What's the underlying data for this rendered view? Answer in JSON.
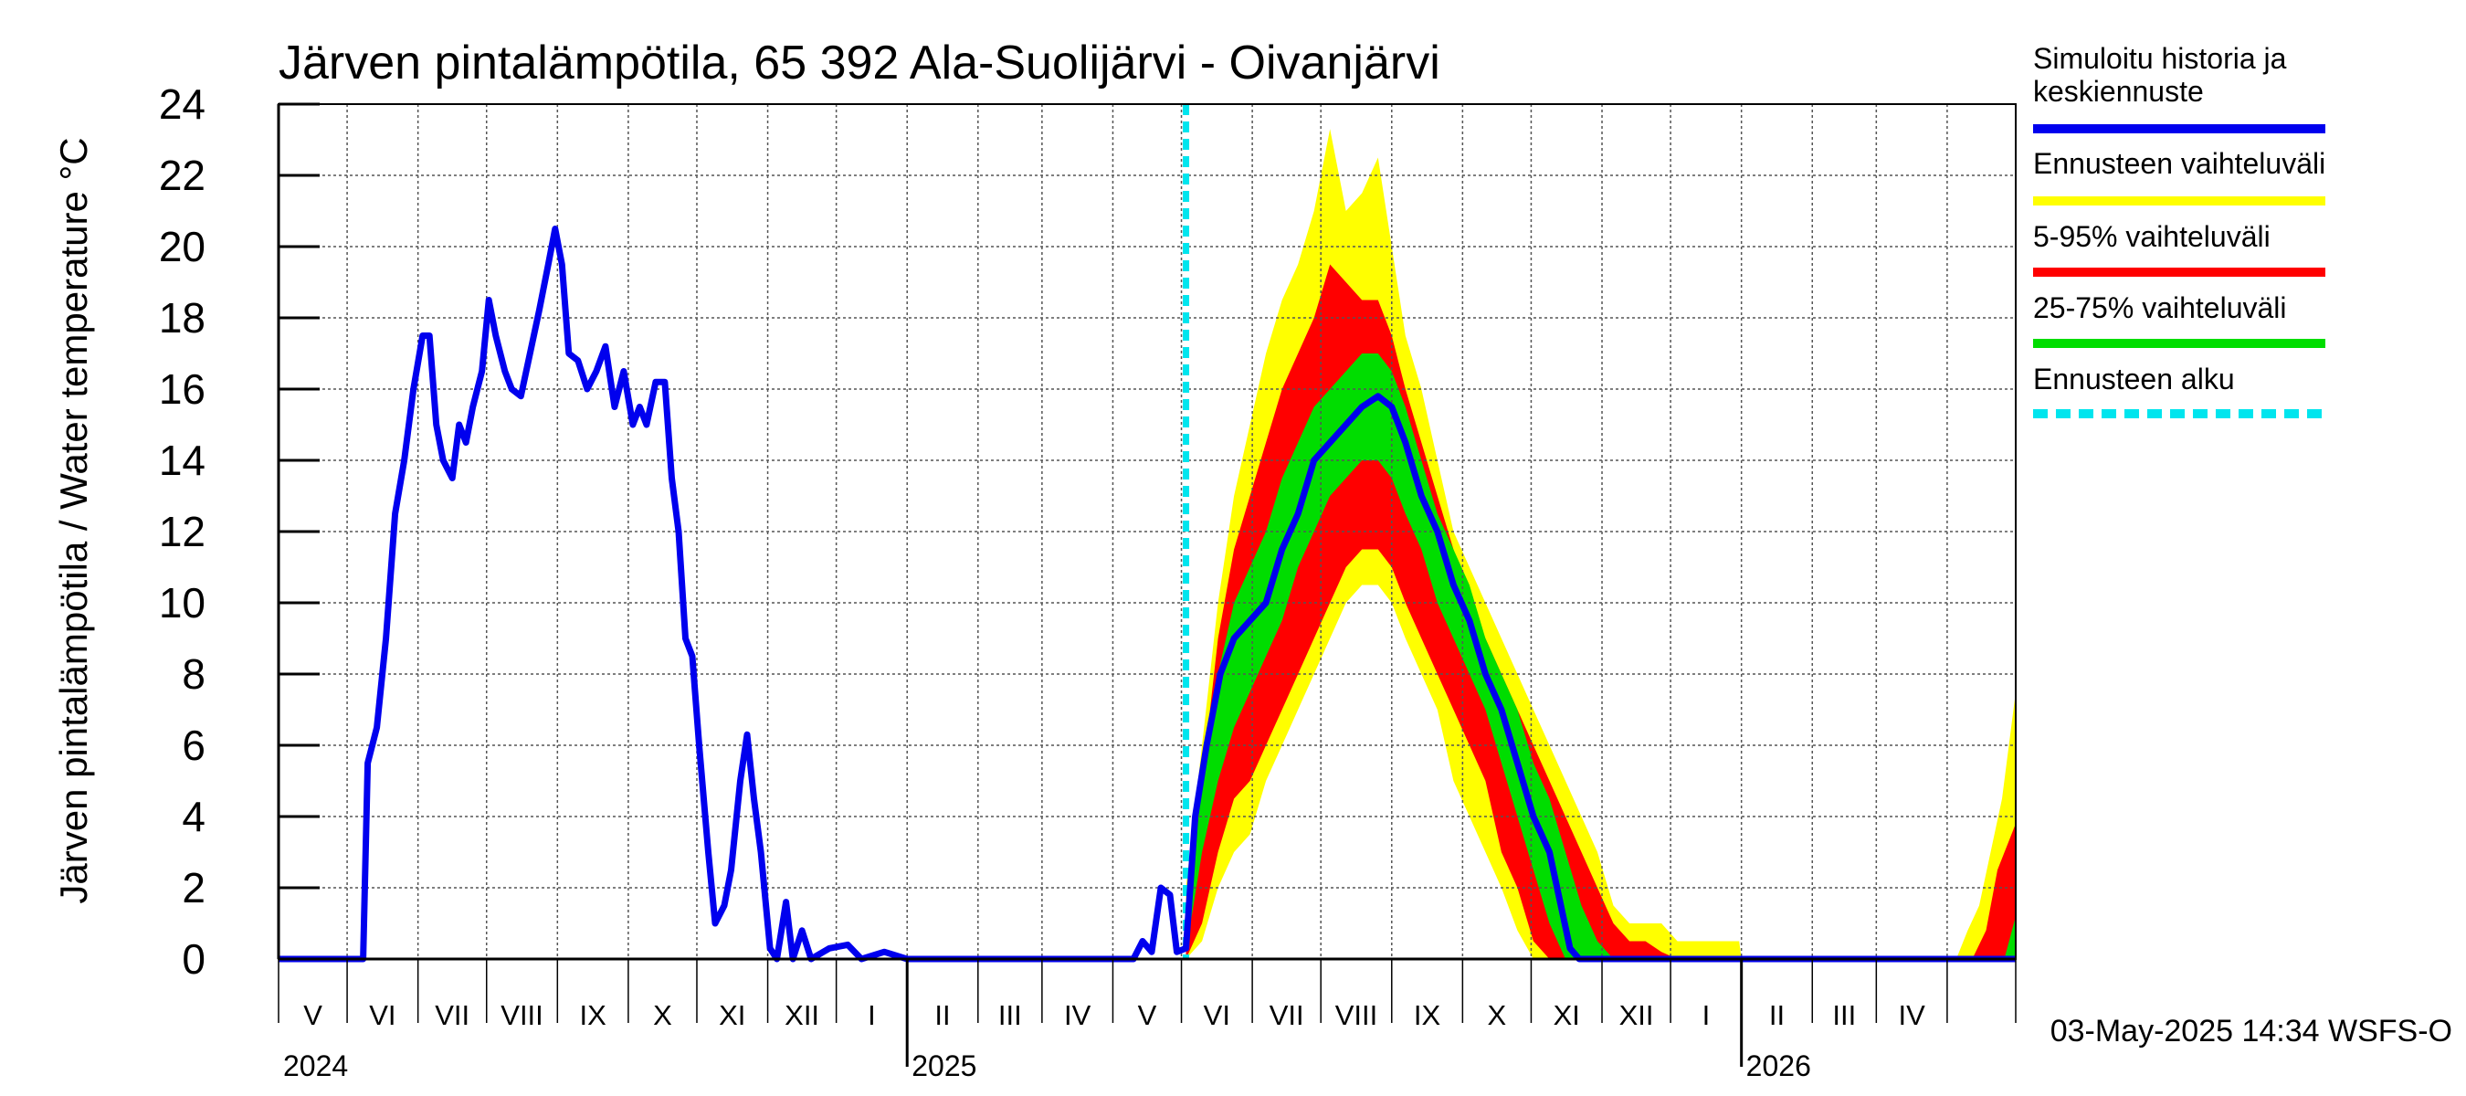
{
  "chart_data": {
    "type": "area",
    "title": "Järven pintalämpötila, 65 392 Ala-Suolijärvi - Oivanjärvi",
    "ylabel": "Järven pintalämpötila / Water temperature °C",
    "xlabel": "",
    "ylim": [
      0,
      24
    ],
    "yticks": [
      0,
      2,
      4,
      6,
      8,
      10,
      12,
      14,
      16,
      18,
      20,
      22,
      24
    ],
    "xlim": [
      "2024-04-01",
      "2026-05-01"
    ],
    "grid": true,
    "legend_position": "right",
    "month_labels": [
      "V",
      "VI",
      "VII",
      "VIII",
      "IX",
      "X",
      "XI",
      "XII",
      "I",
      "II",
      "III",
      "IV",
      "V",
      "VI",
      "VII",
      "VIII",
      "IX",
      "X",
      "XI",
      "XII",
      "I",
      "II",
      "III",
      "IV"
    ],
    "year_labels": [
      {
        "date": "2024-04-01",
        "label": "2024"
      },
      {
        "date": "2025-01-01",
        "label": "2025"
      },
      {
        "date": "2026-01-01",
        "label": "2026"
      }
    ],
    "forecast_start": "2025-05-03",
    "footer": "03-May-2025 14:34 WSFS-O",
    "legend": [
      {
        "label": "Simuloitu historia ja keskiennuste",
        "color": "#0000ee",
        "style": "solid"
      },
      {
        "label": "Ennusteen vaihteluväli",
        "color": "#ffff00",
        "style": "solid"
      },
      {
        "label": "5-95% vaihteluväli",
        "color": "#ff0000",
        "style": "solid"
      },
      {
        "label": "25-75% vaihteluväli",
        "color": "#00dd00",
        "style": "solid"
      },
      {
        "label": "Ennusteen alku",
        "color": "#00e5ee",
        "style": "dashed"
      }
    ],
    "series": [
      {
        "name": "Simuloitu historia ja keskiennuste",
        "color": "#0000ee",
        "points": [
          [
            "2024-04-01",
            0
          ],
          [
            "2024-05-08",
            0
          ],
          [
            "2024-05-10",
            5.5
          ],
          [
            "2024-05-14",
            6.5
          ],
          [
            "2024-05-18",
            9
          ],
          [
            "2024-05-22",
            12.5
          ],
          [
            "2024-05-26",
            14
          ],
          [
            "2024-05-30",
            16
          ],
          [
            "2024-06-03",
            17.5
          ],
          [
            "2024-06-06",
            17.5
          ],
          [
            "2024-06-09",
            15
          ],
          [
            "2024-06-12",
            14
          ],
          [
            "2024-06-16",
            13.5
          ],
          [
            "2024-06-19",
            15
          ],
          [
            "2024-06-22",
            14.5
          ],
          [
            "2024-06-25",
            15.5
          ],
          [
            "2024-06-29",
            16.5
          ],
          [
            "2024-07-02",
            18.5
          ],
          [
            "2024-07-05",
            17.5
          ],
          [
            "2024-07-09",
            16.5
          ],
          [
            "2024-07-12",
            16
          ],
          [
            "2024-07-16",
            15.8
          ],
          [
            "2024-07-20",
            17
          ],
          [
            "2024-07-24",
            18.2
          ],
          [
            "2024-07-28",
            19.5
          ],
          [
            "2024-07-31",
            20.5
          ],
          [
            "2024-08-03",
            19.5
          ],
          [
            "2024-08-06",
            17
          ],
          [
            "2024-08-10",
            16.8
          ],
          [
            "2024-08-14",
            16
          ],
          [
            "2024-08-18",
            16.5
          ],
          [
            "2024-08-22",
            17.2
          ],
          [
            "2024-08-26",
            15.5
          ],
          [
            "2024-08-30",
            16.5
          ],
          [
            "2024-09-03",
            15
          ],
          [
            "2024-09-06",
            15.5
          ],
          [
            "2024-09-09",
            15
          ],
          [
            "2024-09-13",
            16.2
          ],
          [
            "2024-09-17",
            16.2
          ],
          [
            "2024-09-20",
            13.5
          ],
          [
            "2024-09-23",
            12
          ],
          [
            "2024-09-26",
            9
          ],
          [
            "2024-09-29",
            8.5
          ],
          [
            "2024-10-02",
            6
          ],
          [
            "2024-10-06",
            3
          ],
          [
            "2024-10-09",
            1
          ],
          [
            "2024-10-13",
            1.5
          ],
          [
            "2024-10-16",
            2.5
          ],
          [
            "2024-10-20",
            5
          ],
          [
            "2024-10-23",
            6.3
          ],
          [
            "2024-10-26",
            4.5
          ],
          [
            "2024-10-29",
            3
          ],
          [
            "2024-11-02",
            0.3
          ],
          [
            "2024-11-05",
            0
          ],
          [
            "2024-11-09",
            1.6
          ],
          [
            "2024-11-12",
            0
          ],
          [
            "2024-11-16",
            0.8
          ],
          [
            "2024-11-20",
            0
          ],
          [
            "2024-11-28",
            0.3
          ],
          [
            "2024-12-06",
            0.4
          ],
          [
            "2024-12-12",
            0
          ],
          [
            "2024-12-22",
            0.2
          ],
          [
            "2025-01-01",
            0
          ],
          [
            "2025-04-10",
            0
          ],
          [
            "2025-04-14",
            0.5
          ],
          [
            "2025-04-18",
            0.2
          ],
          [
            "2025-04-22",
            2
          ],
          [
            "2025-04-26",
            1.8
          ],
          [
            "2025-04-29",
            0.2
          ],
          [
            "2025-05-03",
            0.3
          ],
          [
            "2025-05-07",
            4
          ],
          [
            "2025-05-12",
            6
          ],
          [
            "2025-05-18",
            8
          ],
          [
            "2025-05-24",
            9
          ],
          [
            "2025-05-31",
            9.5
          ],
          [
            "2025-06-07",
            10
          ],
          [
            "2025-06-14",
            11.5
          ],
          [
            "2025-06-21",
            12.5
          ],
          [
            "2025-06-28",
            14
          ],
          [
            "2025-07-05",
            14.5
          ],
          [
            "2025-07-12",
            15
          ],
          [
            "2025-07-19",
            15.5
          ],
          [
            "2025-07-26",
            15.8
          ],
          [
            "2025-08-01",
            15.5
          ],
          [
            "2025-08-07",
            14.5
          ],
          [
            "2025-08-14",
            13
          ],
          [
            "2025-08-21",
            12
          ],
          [
            "2025-08-28",
            10.5
          ],
          [
            "2025-09-04",
            9.5
          ],
          [
            "2025-09-11",
            8
          ],
          [
            "2025-09-18",
            7
          ],
          [
            "2025-09-25",
            5.5
          ],
          [
            "2025-10-02",
            4
          ],
          [
            "2025-10-09",
            3
          ],
          [
            "2025-10-14",
            1.5
          ],
          [
            "2025-10-18",
            0.3
          ],
          [
            "2025-10-22",
            0
          ],
          [
            "2026-05-01",
            0
          ]
        ]
      },
      {
        "name": "Ennusteen vaihteluväli",
        "color": "#ffff00",
        "points": [
          [
            "2025-05-03",
            0,
            2
          ],
          [
            "2025-05-10",
            0.5,
            6
          ],
          [
            "2025-05-17",
            2,
            10
          ],
          [
            "2025-05-24",
            3,
            13
          ],
          [
            "2025-05-31",
            3.5,
            15
          ],
          [
            "2025-06-07",
            5,
            17
          ],
          [
            "2025-06-14",
            6,
            18.5
          ],
          [
            "2025-06-21",
            7,
            19.5
          ],
          [
            "2025-06-28",
            8,
            21
          ],
          [
            "2025-07-05",
            9,
            23.3
          ],
          [
            "2025-07-12",
            10,
            21
          ],
          [
            "2025-07-19",
            10.5,
            21.5
          ],
          [
            "2025-07-26",
            10.5,
            22.5
          ],
          [
            "2025-08-01",
            10,
            20
          ],
          [
            "2025-08-07",
            9,
            17.5
          ],
          [
            "2025-08-14",
            8,
            16
          ],
          [
            "2025-08-21",
            7,
            14
          ],
          [
            "2025-08-28",
            5,
            12
          ],
          [
            "2025-09-04",
            4,
            11
          ],
          [
            "2025-09-11",
            3,
            10
          ],
          [
            "2025-09-18",
            2,
            9
          ],
          [
            "2025-09-25",
            0.8,
            8
          ],
          [
            "2025-10-02",
            0,
            7
          ],
          [
            "2025-10-09",
            0,
            6
          ],
          [
            "2025-10-16",
            0,
            5
          ],
          [
            "2025-10-23",
            0,
            4
          ],
          [
            "2025-10-30",
            0,
            3
          ],
          [
            "2025-11-06",
            0,
            1.5
          ],
          [
            "2025-11-13",
            0,
            1
          ],
          [
            "2025-11-20",
            0,
            1
          ],
          [
            "2025-11-27",
            0,
            1
          ],
          [
            "2025-12-04",
            0,
            0.5
          ],
          [
            "2025-12-31",
            0,
            0.5
          ],
          [
            "2026-01-01",
            0,
            0
          ],
          [
            "2026-04-05",
            0,
            0
          ],
          [
            "2026-04-10",
            0,
            0.8
          ],
          [
            "2026-04-15",
            0,
            1.5
          ],
          [
            "2026-04-20",
            0,
            3
          ],
          [
            "2026-04-25",
            0,
            4.5
          ],
          [
            "2026-05-01",
            0,
            7.5
          ]
        ]
      },
      {
        "name": "5-95% vaihteluväli",
        "color": "#ff0000",
        "points": [
          [
            "2025-05-03",
            0,
            1
          ],
          [
            "2025-05-10",
            1,
            5
          ],
          [
            "2025-05-17",
            3,
            9
          ],
          [
            "2025-05-24",
            4.5,
            11.5
          ],
          [
            "2025-05-31",
            5,
            13
          ],
          [
            "2025-06-07",
            6,
            14.5
          ],
          [
            "2025-06-14",
            7,
            16
          ],
          [
            "2025-06-21",
            8,
            17
          ],
          [
            "2025-06-28",
            9,
            18
          ],
          [
            "2025-07-05",
            10,
            19.5
          ],
          [
            "2025-07-12",
            11,
            19
          ],
          [
            "2025-07-19",
            11.5,
            18.5
          ],
          [
            "2025-07-26",
            11.5,
            18.5
          ],
          [
            "2025-08-01",
            11,
            17.5
          ],
          [
            "2025-08-07",
            10,
            16
          ],
          [
            "2025-08-14",
            9,
            14.5
          ],
          [
            "2025-08-21",
            8,
            13
          ],
          [
            "2025-08-28",
            7,
            11.5
          ],
          [
            "2025-09-04",
            6,
            10
          ],
          [
            "2025-09-11",
            5,
            9
          ],
          [
            "2025-09-18",
            3,
            8
          ],
          [
            "2025-09-25",
            2,
            7
          ],
          [
            "2025-10-02",
            0.5,
            6
          ],
          [
            "2025-10-09",
            0,
            5
          ],
          [
            "2025-10-16",
            0,
            4
          ],
          [
            "2025-10-23",
            0,
            3
          ],
          [
            "2025-10-30",
            0,
            2
          ],
          [
            "2025-11-06",
            0,
            1
          ],
          [
            "2025-11-13",
            0,
            0.5
          ],
          [
            "2025-11-20",
            0,
            0.5
          ],
          [
            "2025-11-27",
            0,
            0.2
          ],
          [
            "2025-12-04",
            0,
            0
          ],
          [
            "2026-04-12",
            0,
            0
          ],
          [
            "2026-04-18",
            0,
            0.8
          ],
          [
            "2026-04-23",
            0,
            2.5
          ],
          [
            "2026-05-01",
            0,
            3.8
          ]
        ]
      },
      {
        "name": "25-75% vaihteluväli",
        "color": "#00dd00",
        "points": [
          [
            "2025-05-03",
            0.2,
            0.5
          ],
          [
            "2025-05-10",
            3,
            5
          ],
          [
            "2025-05-17",
            5,
            8
          ],
          [
            "2025-05-24",
            6.5,
            10
          ],
          [
            "2025-05-31",
            7.5,
            11
          ],
          [
            "2025-06-07",
            8.5,
            12
          ],
          [
            "2025-06-14",
            9.5,
            13.5
          ],
          [
            "2025-06-21",
            11,
            14.5
          ],
          [
            "2025-06-28",
            12,
            15.5
          ],
          [
            "2025-07-05",
            13,
            16
          ],
          [
            "2025-07-12",
            13.5,
            16.5
          ],
          [
            "2025-07-19",
            14,
            17
          ],
          [
            "2025-07-26",
            14,
            17
          ],
          [
            "2025-08-01",
            13.5,
            16.5
          ],
          [
            "2025-08-07",
            12.5,
            15.5
          ],
          [
            "2025-08-14",
            11.5,
            14
          ],
          [
            "2025-08-21",
            10,
            12.5
          ],
          [
            "2025-08-28",
            9,
            11.5
          ],
          [
            "2025-09-04",
            8,
            10.5
          ],
          [
            "2025-09-11",
            7,
            9
          ],
          [
            "2025-09-18",
            5.5,
            8
          ],
          [
            "2025-09-25",
            4,
            7
          ],
          [
            "2025-10-02",
            2.5,
            5.5
          ],
          [
            "2025-10-09",
            1,
            4.5
          ],
          [
            "2025-10-16",
            0,
            3
          ],
          [
            "2025-10-23",
            0,
            1.5
          ],
          [
            "2025-10-30",
            0,
            0.5
          ],
          [
            "2025-11-06",
            0,
            0
          ],
          [
            "2026-04-26",
            0,
            0
          ],
          [
            "2026-05-01",
            0,
            1.2
          ]
        ]
      }
    ]
  }
}
